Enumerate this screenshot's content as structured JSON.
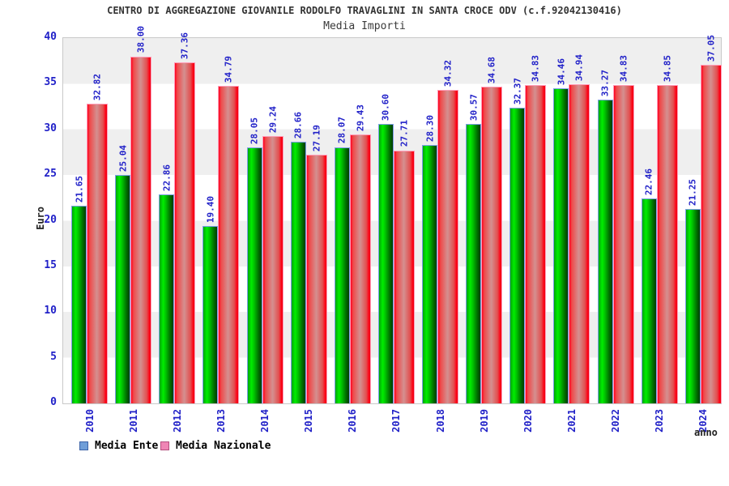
{
  "header": {
    "title": "CENTRO DI AGGREGAZIONE GIOVANILE RODOLFO TRAVAGLINI IN SANTA CROCE ODV (c.f.92042130416)",
    "subtitle": "Media Importi"
  },
  "axes": {
    "y_label": "Euro",
    "x_label": "anno",
    "y_ticks": [
      0,
      5,
      10,
      15,
      20,
      25,
      30,
      35,
      40
    ]
  },
  "legend": {
    "items": [
      {
        "label": "Media Ente",
        "fill": "#6f9ed8",
        "border": "#3b63a8"
      },
      {
        "label": "Media Nazionale",
        "fill": "#ef85b5",
        "border": "#b44f7e"
      }
    ]
  },
  "colors": {
    "tick_text": "#2121c8",
    "band_gray": "#efefef",
    "band_white": "#ffffff",
    "plot_border": "#c9c9c9",
    "ente_border": "#7e9fe8",
    "naz_border": "#ff9db8",
    "ente_gradient": [
      "#00a40a",
      "#00ee00",
      "#00c400",
      "#007400",
      "#013b00"
    ],
    "naz_gradient": [
      "#ff0020",
      "#ef4a4a",
      "#d49090",
      "#e25050",
      "#ff0016",
      "#e80012"
    ]
  },
  "chart_data": {
    "type": "bar",
    "title": "Media Importi",
    "categories": [
      "2010",
      "2011",
      "2012",
      "2013",
      "2014",
      "2015",
      "2016",
      "2017",
      "2018",
      "2019",
      "2020",
      "2021",
      "2022",
      "2023",
      "2024"
    ],
    "series": [
      {
        "name": "Media Ente",
        "values": [
          21.65,
          25.04,
          22.86,
          19.4,
          28.05,
          28.66,
          28.07,
          30.6,
          28.3,
          30.57,
          32.37,
          34.46,
          33.27,
          22.46,
          21.25
        ]
      },
      {
        "name": "Media Nazionale",
        "values": [
          32.82,
          38.0,
          37.36,
          34.79,
          29.24,
          27.19,
          29.43,
          27.71,
          34.32,
          34.68,
          34.83,
          34.94,
          34.83,
          34.85,
          37.05
        ]
      }
    ],
    "xlabel": "anno",
    "ylabel": "Euro",
    "ylim": [
      0,
      40
    ],
    "grid": "horizontal-bands",
    "legend_position": "bottom-left"
  }
}
